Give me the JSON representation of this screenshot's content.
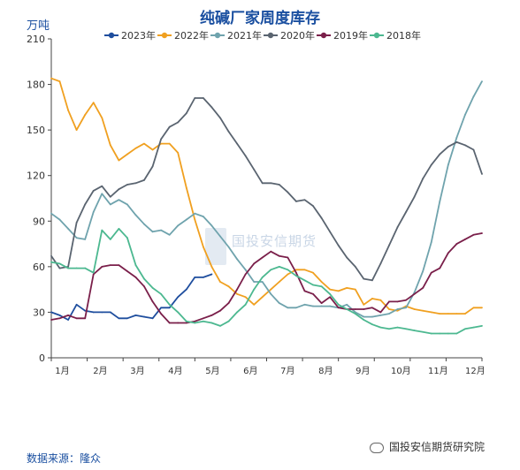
{
  "title": "纯碱厂家周度库存",
  "unit": "万吨",
  "source": "数据来源：隆众",
  "footer": "国投安信期货研究院",
  "watermark": "国投安信期货",
  "chart_data": {
    "type": "line",
    "title": "纯碱厂家周度库存",
    "ylabel": "万吨",
    "ylim": [
      0,
      210
    ],
    "yticks": [
      0,
      30,
      60,
      90,
      120,
      150,
      180,
      210
    ],
    "xlim": [
      1,
      52
    ],
    "xticks": [
      {
        "label": "1月",
        "week": 2.3
      },
      {
        "label": "2月",
        "week": 6.8
      },
      {
        "label": "3月",
        "week": 11.2
      },
      {
        "label": "4月",
        "week": 15.7
      },
      {
        "label": "5月",
        "week": 20.1
      },
      {
        "label": "6月",
        "week": 24.6
      },
      {
        "label": "7月",
        "week": 29.0
      },
      {
        "label": "8月",
        "week": 33.5
      },
      {
        "label": "9月",
        "week": 37.9
      },
      {
        "label": "10月",
        "week": 42.4
      },
      {
        "label": "11月",
        "week": 46.8
      },
      {
        "label": "12月",
        "week": 51.2
      }
    ],
    "grid": false,
    "legend_position": "top",
    "series": [
      {
        "name": "2023年",
        "color": "#1f4e9e",
        "x": [
          1,
          2,
          3,
          4,
          5,
          6,
          7,
          8,
          9,
          10,
          11,
          12,
          13,
          14,
          15,
          16,
          17,
          18,
          19,
          20
        ],
        "values": [
          30,
          28,
          25,
          35,
          31,
          30,
          30,
          30,
          26,
          26,
          28,
          27,
          26,
          33,
          33,
          40,
          45,
          53,
          53,
          55
        ]
      },
      {
        "name": "2022年",
        "color": "#f0a020",
        "x": [
          1,
          2,
          3,
          4,
          5,
          6,
          7,
          8,
          9,
          10,
          11,
          12,
          13,
          14,
          15,
          16,
          17,
          18,
          19,
          20,
          21,
          22,
          23,
          24,
          25,
          26,
          27,
          28,
          29,
          30,
          31,
          32,
          33,
          34,
          35,
          36,
          37,
          38,
          39,
          40,
          41,
          42,
          43,
          44,
          45,
          46,
          47,
          48,
          49,
          50,
          51,
          52
        ],
        "values": [
          184,
          182,
          163,
          150,
          160,
          168,
          158,
          140,
          130,
          134,
          138,
          141,
          137,
          141,
          141,
          135,
          112,
          91,
          73,
          60,
          50,
          47,
          42,
          40,
          35,
          40,
          45,
          50,
          55,
          58,
          58,
          56,
          50,
          45,
          44,
          46,
          45,
          35,
          39,
          38,
          32,
          31,
          34,
          32,
          31,
          30,
          29,
          29,
          29,
          29,
          33,
          33
        ]
      },
      {
        "name": "2021年",
        "color": "#6fa3ad",
        "x": [
          1,
          2,
          3,
          4,
          5,
          6,
          7,
          8,
          9,
          10,
          11,
          12,
          13,
          14,
          15,
          16,
          17,
          18,
          19,
          20,
          21,
          22,
          23,
          24,
          25,
          26,
          27,
          28,
          29,
          30,
          31,
          32,
          33,
          34,
          35,
          36,
          37,
          38,
          39,
          40,
          41,
          42,
          43,
          44,
          45,
          46,
          47,
          48,
          49,
          50,
          51,
          52
        ],
        "values": [
          95,
          91,
          85,
          79,
          78,
          96,
          108,
          101,
          104,
          101,
          94,
          88,
          83,
          84,
          81,
          87,
          91,
          95,
          93,
          87,
          80,
          73,
          65,
          58,
          50,
          50,
          42,
          36,
          33,
          33,
          35,
          34,
          34,
          34,
          33,
          35,
          30,
          27,
          27,
          28,
          29,
          32,
          33,
          43,
          57,
          76,
          103,
          127,
          145,
          160,
          172,
          182
        ]
      },
      {
        "name": "2020年",
        "color": "#5a6470",
        "x": [
          1,
          2,
          3,
          4,
          5,
          6,
          7,
          8,
          9,
          10,
          11,
          12,
          13,
          14,
          15,
          16,
          17,
          18,
          19,
          20,
          21,
          22,
          23,
          24,
          25,
          26,
          27,
          28,
          29,
          30,
          31,
          32,
          33,
          34,
          35,
          36,
          37,
          38,
          39,
          40,
          41,
          42,
          43,
          44,
          45,
          46,
          47,
          48,
          49,
          50,
          51,
          52
        ],
        "values": [
          67,
          59,
          60,
          89,
          101,
          110,
          113,
          106,
          111,
          114,
          115,
          117,
          126,
          144,
          152,
          155,
          161,
          171,
          171,
          165,
          158,
          149,
          141,
          133,
          124,
          115,
          115,
          114,
          109,
          103,
          104,
          100,
          92,
          83,
          74,
          66,
          60,
          52,
          51,
          62,
          74,
          86,
          96,
          106,
          118,
          127,
          134,
          139,
          142,
          140,
          137,
          121
        ]
      },
      {
        "name": "2019年",
        "color": "#7a1f4a",
        "x": [
          1,
          2,
          3,
          4,
          5,
          6,
          7,
          8,
          9,
          10,
          11,
          12,
          13,
          14,
          15,
          16,
          17,
          18,
          19,
          20,
          21,
          22,
          23,
          24,
          25,
          26,
          27,
          28,
          29,
          30,
          31,
          32,
          33,
          34,
          35,
          36,
          37,
          38,
          39,
          40,
          41,
          42,
          43,
          44,
          45,
          46,
          47,
          48,
          49,
          50,
          51,
          52
        ],
        "values": [
          25,
          26,
          28,
          26,
          26,
          55,
          60,
          61,
          61,
          57,
          53,
          47,
          37,
          29,
          23,
          23,
          23,
          24,
          26,
          28,
          31,
          36,
          45,
          55,
          62,
          66,
          70,
          67,
          66,
          56,
          44,
          42,
          36,
          40,
          33,
          32,
          32,
          32,
          33,
          30,
          37,
          37,
          38,
          42,
          46,
          56,
          59,
          69,
          75,
          78,
          81,
          82
        ]
      },
      {
        "name": "2018年",
        "color": "#4cb890",
        "x": [
          1,
          2,
          3,
          4,
          5,
          6,
          7,
          8,
          9,
          10,
          11,
          12,
          13,
          14,
          15,
          16,
          17,
          18,
          19,
          20,
          21,
          22,
          23,
          24,
          25,
          26,
          27,
          28,
          29,
          30,
          31,
          32,
          33,
          34,
          35,
          36,
          37,
          38,
          39,
          40,
          41,
          42,
          43,
          44,
          45,
          46,
          47,
          48,
          49,
          50,
          51,
          52
        ],
        "values": [
          63,
          62,
          59,
          59,
          59,
          56,
          84,
          78,
          85,
          79,
          61,
          52,
          46,
          42,
          35,
          30,
          24,
          23,
          24,
          23,
          21,
          24,
          30,
          35,
          45,
          53,
          58,
          60,
          58,
          54,
          51,
          48,
          47,
          42,
          35,
          32,
          29,
          25,
          22,
          20,
          19,
          20,
          19,
          18,
          17,
          16,
          16,
          16,
          16,
          19,
          20,
          21
        ]
      }
    ]
  }
}
